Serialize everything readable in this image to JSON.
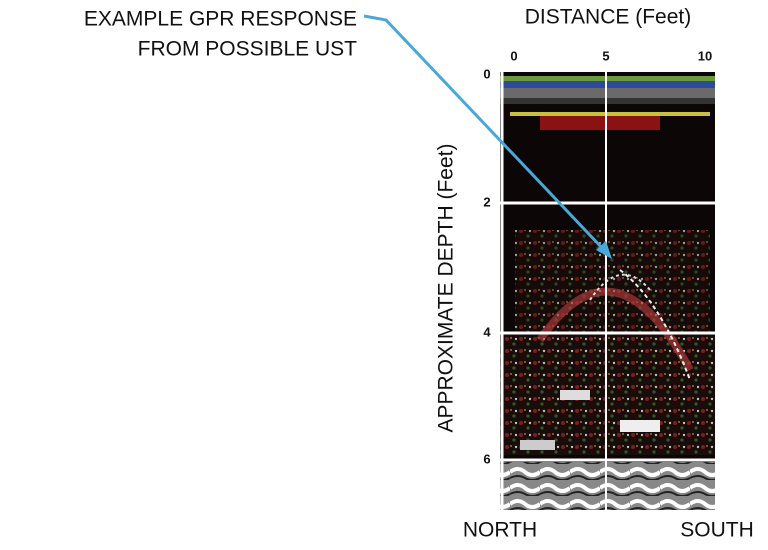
{
  "annotation": {
    "lines": [
      "EXAMPLE GPR RESPONSE",
      "FROM POSSIBLE UST"
    ]
  },
  "x_axis": {
    "title": "DISTANCE (Feet)",
    "ticks": [
      "0",
      "5",
      "10"
    ]
  },
  "y_axis": {
    "title": "APPROXIMATE DEPTH (Feet)",
    "ticks": [
      "0",
      "2",
      "4",
      "6"
    ]
  },
  "ends": {
    "left": "NORTH",
    "right": "SOUTH"
  }
}
